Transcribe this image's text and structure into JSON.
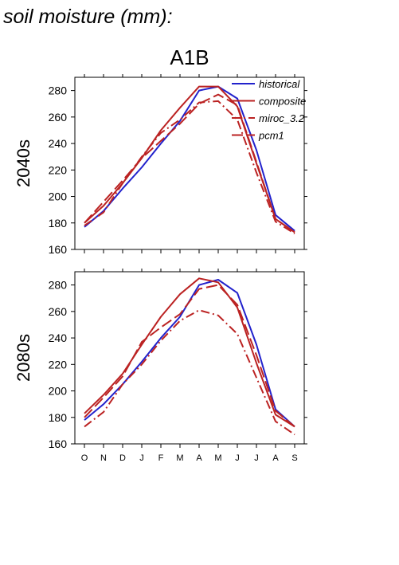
{
  "figure": {
    "title": "soil moisture (mm):",
    "scenario": "A1B"
  },
  "colors": {
    "historical": "#2222cc",
    "model": "#bb2222",
    "axis": "#000000"
  },
  "chart_data": [
    {
      "type": "line",
      "panel_label": "2040s",
      "categories": [
        "O",
        "N",
        "D",
        "J",
        "F",
        "M",
        "A",
        "M",
        "J",
        "J",
        "A",
        "S"
      ],
      "ylim": [
        160,
        290
      ],
      "yticks": [
        160,
        180,
        200,
        220,
        240,
        260,
        280
      ],
      "legend": {
        "placement": "top-right",
        "entries": [
          "historical",
          "composite",
          "miroc_3.2",
          "pcm1"
        ]
      },
      "series": [
        {
          "name": "historical",
          "style": "solid",
          "color": "#2222cc",
          "values": [
            177,
            189,
            206,
            222,
            240,
            257,
            280,
            283,
            274,
            235,
            186,
            174
          ]
        },
        {
          "name": "composite",
          "style": "solid",
          "color": "#bb2222",
          "values": [
            180,
            193,
            210,
            229,
            250,
            267,
            283,
            283,
            268,
            225,
            183,
            173
          ]
        },
        {
          "name": "miroc_3.2",
          "style": "dashdot",
          "color": "#bb2222",
          "values": [
            178,
            188,
            210,
            230,
            248,
            258,
            271,
            272,
            258,
            218,
            181,
            172
          ]
        },
        {
          "name": "pcm1",
          "style": "dashed",
          "color": "#bb2222",
          "values": [
            180,
            196,
            212,
            229,
            242,
            255,
            270,
            277,
            269,
            226,
            183,
            173
          ]
        }
      ]
    },
    {
      "type": "line",
      "panel_label": "2080s",
      "categories": [
        "O",
        "N",
        "D",
        "J",
        "F",
        "M",
        "A",
        "M",
        "J",
        "J",
        "A",
        "S"
      ],
      "ylim": [
        160,
        290
      ],
      "yticks": [
        160,
        180,
        200,
        220,
        240,
        260,
        280
      ],
      "xticks": [
        "O",
        "N",
        "D",
        "J",
        "F",
        "M",
        "A",
        "M",
        "J",
        "J",
        "A",
        "S"
      ],
      "series": [
        {
          "name": "historical",
          "style": "solid",
          "color": "#2222cc",
          "values": [
            178,
            190,
            205,
            222,
            240,
            256,
            280,
            284,
            274,
            235,
            186,
            173
          ]
        },
        {
          "name": "composite",
          "style": "solid",
          "color": "#bb2222",
          "values": [
            183,
            197,
            213,
            235,
            256,
            273,
            285,
            282,
            263,
            221,
            182,
            173
          ]
        },
        {
          "name": "miroc_3.2",
          "style": "dashdot",
          "color": "#bb2222",
          "values": [
            173,
            184,
            205,
            220,
            238,
            253,
            261,
            257,
            243,
            210,
            177,
            167
          ]
        },
        {
          "name": "pcm1",
          "style": "dashed",
          "color": "#bb2222",
          "values": [
            180,
            195,
            211,
            237,
            248,
            258,
            277,
            280,
            265,
            227,
            185,
            173
          ]
        }
      ]
    }
  ]
}
